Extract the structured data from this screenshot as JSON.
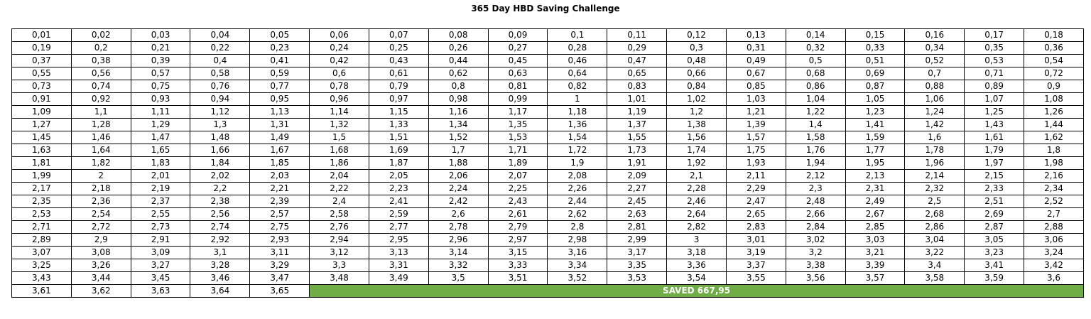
{
  "title": "365 Day HBD Saving Challenge",
  "columns": 18,
  "rows": [
    [
      "0,01",
      "0,02",
      "0,03",
      "0,04",
      "0,05",
      "0,06",
      "0,07",
      "0,08",
      "0,09",
      "0,1",
      "0,11",
      "0,12",
      "0,13",
      "0,14",
      "0,15",
      "0,16",
      "0,17",
      "0,18"
    ],
    [
      "0,19",
      "0,2",
      "0,21",
      "0,22",
      "0,23",
      "0,24",
      "0,25",
      "0,26",
      "0,27",
      "0,28",
      "0,29",
      "0,3",
      "0,31",
      "0,32",
      "0,33",
      "0,34",
      "0,35",
      "0,36"
    ],
    [
      "0,37",
      "0,38",
      "0,39",
      "0,4",
      "0,41",
      "0,42",
      "0,43",
      "0,44",
      "0,45",
      "0,46",
      "0,47",
      "0,48",
      "0,49",
      "0,5",
      "0,51",
      "0,52",
      "0,53",
      "0,54"
    ],
    [
      "0,55",
      "0,56",
      "0,57",
      "0,58",
      "0,59",
      "0,6",
      "0,61",
      "0,62",
      "0,63",
      "0,64",
      "0,65",
      "0,66",
      "0,67",
      "0,68",
      "0,69",
      "0,7",
      "0,71",
      "0,72"
    ],
    [
      "0,73",
      "0,74",
      "0,75",
      "0,76",
      "0,77",
      "0,78",
      "0,79",
      "0,8",
      "0,81",
      "0,82",
      "0,83",
      "0,84",
      "0,85",
      "0,86",
      "0,87",
      "0,88",
      "0,89",
      "0,9"
    ],
    [
      "0,91",
      "0,92",
      "0,93",
      "0,94",
      "0,95",
      "0,96",
      "0,97",
      "0,98",
      "0,99",
      "1",
      "1,01",
      "1,02",
      "1,03",
      "1,04",
      "1,05",
      "1,06",
      "1,07",
      "1,08"
    ],
    [
      "1,09",
      "1,1",
      "1,11",
      "1,12",
      "1,13",
      "1,14",
      "1,15",
      "1,16",
      "1,17",
      "1,18",
      "1,19",
      "1,2",
      "1,21",
      "1,22",
      "1,23",
      "1,24",
      "1,25",
      "1,26"
    ],
    [
      "1,27",
      "1,28",
      "1,29",
      "1,3",
      "1,31",
      "1,32",
      "1,33",
      "1,34",
      "1,35",
      "1,36",
      "1,37",
      "1,38",
      "1,39",
      "1,4",
      "1,41",
      "1,42",
      "1,43",
      "1,44"
    ],
    [
      "1,45",
      "1,46",
      "1,47",
      "1,48",
      "1,49",
      "1,5",
      "1,51",
      "1,52",
      "1,53",
      "1,54",
      "1,55",
      "1,56",
      "1,57",
      "1,58",
      "1,59",
      "1,6",
      "1,61",
      "1,62"
    ],
    [
      "1,63",
      "1,64",
      "1,65",
      "1,66",
      "1,67",
      "1,68",
      "1,69",
      "1,7",
      "1,71",
      "1,72",
      "1,73",
      "1,74",
      "1,75",
      "1,76",
      "1,77",
      "1,78",
      "1,79",
      "1,8"
    ],
    [
      "1,81",
      "1,82",
      "1,83",
      "1,84",
      "1,85",
      "1,86",
      "1,87",
      "1,88",
      "1,89",
      "1,9",
      "1,91",
      "1,92",
      "1,93",
      "1,94",
      "1,95",
      "1,96",
      "1,97",
      "1,98"
    ],
    [
      "1,99",
      "2",
      "2,01",
      "2,02",
      "2,03",
      "2,04",
      "2,05",
      "2,06",
      "2,07",
      "2,08",
      "2,09",
      "2,1",
      "2,11",
      "2,12",
      "2,13",
      "2,14",
      "2,15",
      "2,16"
    ],
    [
      "2,17",
      "2,18",
      "2,19",
      "2,2",
      "2,21",
      "2,22",
      "2,23",
      "2,24",
      "2,25",
      "2,26",
      "2,27",
      "2,28",
      "2,29",
      "2,3",
      "2,31",
      "2,32",
      "2,33",
      "2,34"
    ],
    [
      "2,35",
      "2,36",
      "2,37",
      "2,38",
      "2,39",
      "2,4",
      "2,41",
      "2,42",
      "2,43",
      "2,44",
      "2,45",
      "2,46",
      "2,47",
      "2,48",
      "2,49",
      "2,5",
      "2,51",
      "2,52"
    ],
    [
      "2,53",
      "2,54",
      "2,55",
      "2,56",
      "2,57",
      "2,58",
      "2,59",
      "2,6",
      "2,61",
      "2,62",
      "2,63",
      "2,64",
      "2,65",
      "2,66",
      "2,67",
      "2,68",
      "2,69",
      "2,7"
    ],
    [
      "2,71",
      "2,72",
      "2,73",
      "2,74",
      "2,75",
      "2,76",
      "2,77",
      "2,78",
      "2,79",
      "2,8",
      "2,81",
      "2,82",
      "2,83",
      "2,84",
      "2,85",
      "2,86",
      "2,87",
      "2,88"
    ],
    [
      "2,89",
      "2,9",
      "2,91",
      "2,92",
      "2,93",
      "2,94",
      "2,95",
      "2,96",
      "2,97",
      "2,98",
      "2,99",
      "3",
      "3,01",
      "3,02",
      "3,03",
      "3,04",
      "3,05",
      "3,06"
    ],
    [
      "3,07",
      "3,08",
      "3,09",
      "3,1",
      "3,11",
      "3,12",
      "3,13",
      "3,14",
      "3,15",
      "3,16",
      "3,17",
      "3,18",
      "3,19",
      "3,2",
      "3,21",
      "3,22",
      "3,23",
      "3,24"
    ],
    [
      "3,25",
      "3,26",
      "3,27",
      "3,28",
      "3,29",
      "3,3",
      "3,31",
      "3,32",
      "3,33",
      "3,34",
      "3,35",
      "3,36",
      "3,37",
      "3,38",
      "3,39",
      "3,4",
      "3,41",
      "3,42"
    ],
    [
      "3,43",
      "3,44",
      "3,45",
      "3,46",
      "3,47",
      "3,48",
      "3,49",
      "3,5",
      "3,51",
      "3,52",
      "3,53",
      "3,54",
      "3,55",
      "3,56",
      "3,57",
      "3,58",
      "3,59",
      "3,6"
    ]
  ],
  "last_row": [
    "3,61",
    "3,62",
    "3,63",
    "3,64",
    "3,65"
  ],
  "saved_label": "SAVED 667,95",
  "colors": {
    "saved_bg": "#70ad47",
    "saved_text": "#ffffff",
    "border": "#000000"
  }
}
